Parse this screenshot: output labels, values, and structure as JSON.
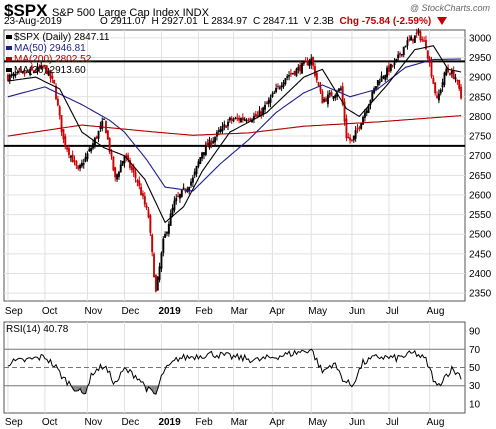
{
  "header": {
    "symbol": "$SPX",
    "description": "S&P 500 Large Cap Index",
    "exchange": "INDX",
    "date": "23-Aug-2019",
    "open": "O 2911.07",
    "high": "H 2927.01",
    "low": "L 2834.97",
    "close": "C 2847.11",
    "volume": "V 2.3B",
    "change": "Chg -75.84 (-2.59%)",
    "credit": "@ StockCharts.com",
    "change_color": "#c00000"
  },
  "chart_data": [
    {
      "type": "candlestick",
      "legend": [
        {
          "label": "$SPX (Daily) 2847.11",
          "color": "#000000"
        },
        {
          "label": "MA(50) 2946.81",
          "color": "#1f1f8a"
        },
        {
          "label": "MA(200) 2802.52",
          "color": "#b00000"
        },
        {
          "label": "MA(20) 2913.60",
          "color": "#000000"
        }
      ],
      "y_ticks": [
        2350,
        2400,
        2450,
        2500,
        2550,
        2600,
        2650,
        2700,
        2750,
        2800,
        2850,
        2900,
        2950,
        3000
      ],
      "ylim": [
        2330,
        3020
      ],
      "x_tick_labels": [
        "Sep",
        "Oct",
        "Nov",
        "Dec",
        "2019",
        "Feb",
        "Mar",
        "Apr",
        "May",
        "Jun",
        "Jul",
        "Aug"
      ],
      "x_tick_index": [
        0,
        20,
        43,
        63,
        83,
        103,
        122,
        143,
        164,
        186,
        206,
        228
      ],
      "horizontal_lines": [
        2940,
        2725
      ],
      "series": [
        {
          "name": "$SPX",
          "type": "candlestick",
          "anchors": [
            [
              0,
              2900
            ],
            [
              10,
              2910
            ],
            [
              20,
              2925
            ],
            [
              25,
              2880
            ],
            [
              30,
              2740
            ],
            [
              38,
              2660
            ],
            [
              45,
              2720
            ],
            [
              52,
              2790
            ],
            [
              58,
              2640
            ],
            [
              63,
              2700
            ],
            [
              70,
              2635
            ],
            [
              76,
              2545
            ],
            [
              80,
              2351
            ],
            [
              84,
              2480
            ],
            [
              90,
              2580
            ],
            [
              100,
              2640
            ],
            [
              105,
              2710
            ],
            [
              120,
              2790
            ],
            [
              135,
              2800
            ],
            [
              140,
              2830
            ],
            [
              150,
              2900
            ],
            [
              160,
              2930
            ],
            [
              164,
              2945
            ],
            [
              170,
              2840
            ],
            [
              180,
              2870
            ],
            [
              183,
              2750
            ],
            [
              186,
              2735
            ],
            [
              192,
              2800
            ],
            [
              200,
              2890
            ],
            [
              210,
              2940
            ],
            [
              215,
              2985
            ],
            [
              222,
              3010
            ],
            [
              226,
              2980
            ],
            [
              232,
              2840
            ],
            [
              237,
              2920
            ],
            [
              242,
              2900
            ],
            [
              245,
              2847
            ]
          ]
        },
        {
          "name": "MA(50)",
          "anchors": [
            [
              0,
              2850
            ],
            [
              20,
              2875
            ],
            [
              40,
              2830
            ],
            [
              55,
              2790
            ],
            [
              63,
              2760
            ],
            [
              75,
              2690
            ],
            [
              85,
              2620
            ],
            [
              100,
              2610
            ],
            [
              115,
              2680
            ],
            [
              130,
              2740
            ],
            [
              145,
              2810
            ],
            [
              160,
              2860
            ],
            [
              170,
              2880
            ],
            [
              185,
              2850
            ],
            [
              200,
              2870
            ],
            [
              215,
              2925
            ],
            [
              230,
              2945
            ],
            [
              245,
              2946
            ]
          ]
        },
        {
          "name": "MA(200)",
          "anchors": [
            [
              0,
              2750
            ],
            [
              40,
              2778
            ],
            [
              80,
              2760
            ],
            [
              100,
              2752
            ],
            [
              130,
              2758
            ],
            [
              160,
              2775
            ],
            [
              200,
              2786
            ],
            [
              245,
              2802
            ]
          ]
        },
        {
          "name": "MA(20)",
          "anchors": [
            [
              0,
              2890
            ],
            [
              15,
              2900
            ],
            [
              28,
              2870
            ],
            [
              40,
              2760
            ],
            [
              52,
              2720
            ],
            [
              63,
              2700
            ],
            [
              74,
              2640
            ],
            [
              85,
              2530
            ],
            [
              95,
              2570
            ],
            [
              105,
              2660
            ],
            [
              120,
              2760
            ],
            [
              140,
              2810
            ],
            [
              160,
              2900
            ],
            [
              170,
              2920
            ],
            [
              183,
              2820
            ],
            [
              190,
              2800
            ],
            [
              205,
              2880
            ],
            [
              220,
              2970
            ],
            [
              230,
              2980
            ],
            [
              238,
              2920
            ],
            [
              245,
              2913
            ]
          ]
        }
      ]
    },
    {
      "type": "line",
      "legend": [
        {
          "label": "RSI(14) 40.78",
          "color": "#000000"
        }
      ],
      "y_ticks": [
        10,
        30,
        50,
        70,
        90
      ],
      "ylim": [
        0,
        100
      ],
      "reference_lines": [
        70,
        50,
        30
      ],
      "x_tick_labels": [
        "Sep",
        "Oct",
        "Nov",
        "Dec",
        "2019",
        "Feb",
        "Mar",
        "Apr",
        "May",
        "Jun",
        "Jul",
        "Aug"
      ],
      "series": [
        {
          "name": "RSI(14)",
          "anchors": [
            [
              0,
              55
            ],
            [
              10,
              58
            ],
            [
              20,
              62
            ],
            [
              26,
              50
            ],
            [
              30,
              38
            ],
            [
              36,
              28
            ],
            [
              41,
              20
            ],
            [
              46,
              45
            ],
            [
              52,
              52
            ],
            [
              58,
              32
            ],
            [
              63,
              48
            ],
            [
              70,
              40
            ],
            [
              76,
              25
            ],
            [
              80,
              20
            ],
            [
              84,
              45
            ],
            [
              92,
              60
            ],
            [
              100,
              62
            ],
            [
              110,
              65
            ],
            [
              120,
              62
            ],
            [
              135,
              58
            ],
            [
              145,
              62
            ],
            [
              160,
              68
            ],
            [
              164,
              70
            ],
            [
              170,
              45
            ],
            [
              176,
              55
            ],
            [
              182,
              35
            ],
            [
              186,
              30
            ],
            [
              192,
              55
            ],
            [
              200,
              62
            ],
            [
              210,
              60
            ],
            [
              220,
              66
            ],
            [
              226,
              58
            ],
            [
              232,
              28
            ],
            [
              236,
              40
            ],
            [
              240,
              48
            ],
            [
              245,
              40.78
            ]
          ]
        }
      ]
    }
  ]
}
